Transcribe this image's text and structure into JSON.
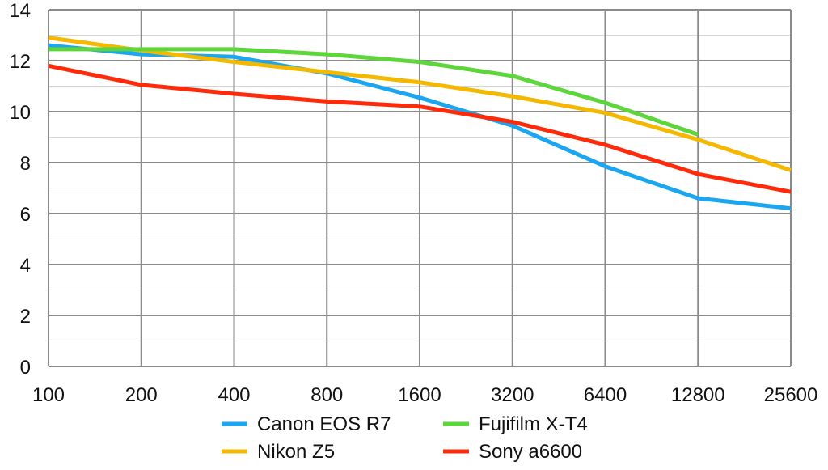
{
  "chart_data": {
    "type": "line",
    "title": "",
    "xlabel": "",
    "ylabel": "",
    "categories": [
      "100",
      "200",
      "400",
      "800",
      "1600",
      "3200",
      "6400",
      "12800",
      "25600"
    ],
    "ylim": [
      0,
      14
    ],
    "yticks": [
      "0",
      "2",
      "4",
      "6",
      "8",
      "10",
      "12",
      "14"
    ],
    "grid": true,
    "legend_position": "bottom",
    "series": [
      {
        "name": "Canon EOS R7",
        "color": "#1aa6f0",
        "values": [
          12.6,
          12.25,
          12.15,
          11.5,
          10.55,
          9.45,
          7.85,
          6.6,
          6.2
        ]
      },
      {
        "name": "Nikon Z5",
        "color": "#f5b800",
        "values": [
          12.9,
          12.4,
          11.95,
          11.55,
          11.15,
          10.6,
          9.95,
          8.9,
          7.7
        ]
      },
      {
        "name": "Fujifilm X-T4",
        "color": "#5cd63a",
        "values": [
          12.45,
          12.45,
          12.45,
          12.25,
          11.95,
          11.4,
          10.35,
          9.1,
          null
        ]
      },
      {
        "name": "Sony a6600",
        "color": "#ff2a0a",
        "values": [
          11.8,
          11.05,
          10.7,
          10.4,
          10.2,
          9.6,
          8.7,
          7.55,
          6.85
        ]
      }
    ]
  }
}
